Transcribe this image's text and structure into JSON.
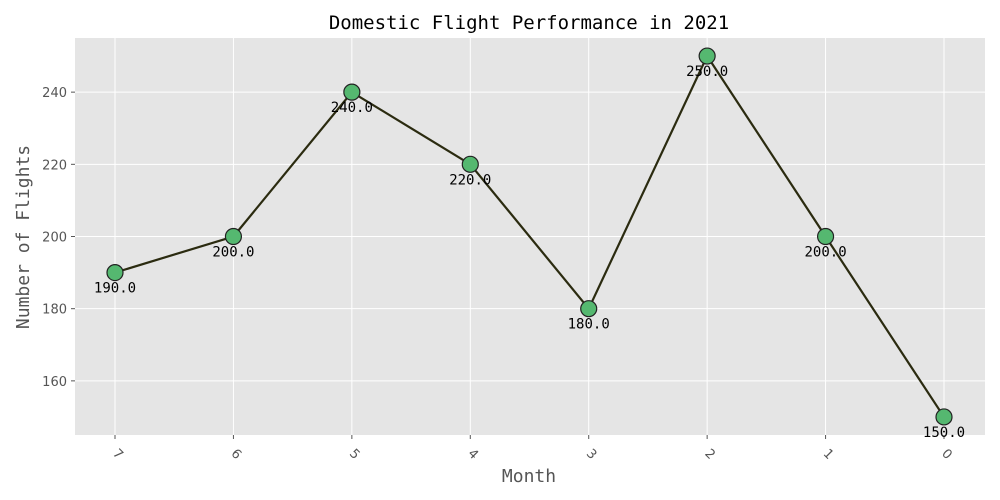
{
  "chart_data": {
    "type": "line",
    "title": "Domestic Flight Performance in 2021",
    "xlabel": "Month",
    "ylabel": "Number of Flights",
    "categories": [
      "7",
      "6",
      "5",
      "4",
      "3",
      "2",
      "1",
      "0"
    ],
    "series": [
      {
        "values": [
          190,
          200,
          240,
          220,
          180,
          250,
          200,
          150
        ],
        "labels": [
          "190.0",
          "200.0",
          "240.0",
          "220.0",
          "180.0",
          "250.0",
          "200.0",
          "150.0"
        ]
      }
    ],
    "ylim": [
      145,
      255
    ],
    "yticks": [
      160,
      180,
      200,
      220,
      240
    ],
    "grid": true,
    "line_color": "#2b2b10",
    "marker_color": "#55b870",
    "marker_edge_color": "#222222",
    "background_color": "#e5e5e5"
  }
}
